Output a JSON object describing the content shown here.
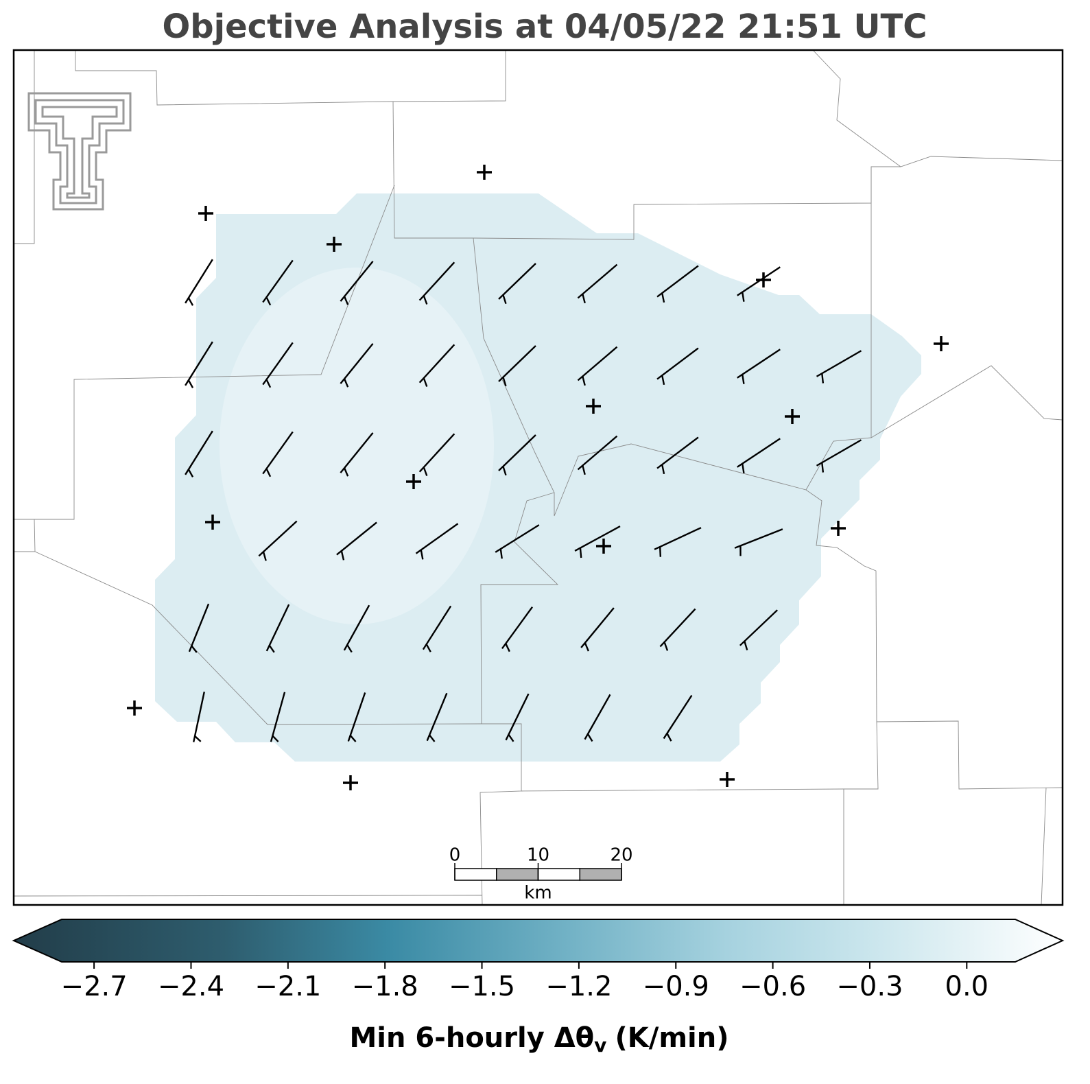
{
  "title": "Objective Analysis at 04/05/22 21:51 UTC",
  "colorbar": {
    "clim": [
      -2.8,
      0.15
    ],
    "ticks": [
      {
        "value": -2.7,
        "label": "−2.7"
      },
      {
        "value": -2.4,
        "label": "−2.4"
      },
      {
        "value": -2.1,
        "label": "−2.1"
      },
      {
        "value": -1.8,
        "label": "−1.8"
      },
      {
        "value": -1.5,
        "label": "−1.5"
      },
      {
        "value": -1.2,
        "label": "−1.2"
      },
      {
        "value": -0.9,
        "label": "−0.9"
      },
      {
        "value": -0.6,
        "label": "−0.6"
      },
      {
        "value": -0.3,
        "label": "−0.3"
      },
      {
        "value": 0,
        "label": "0.0"
      }
    ],
    "label": "Min 6-hourly Δθ",
    "label_subscript": "v",
    "label_unit": "(K/min)"
  },
  "scale_bar": {
    "ticks": [
      0,
      10,
      20
    ],
    "unit": "km"
  }
}
